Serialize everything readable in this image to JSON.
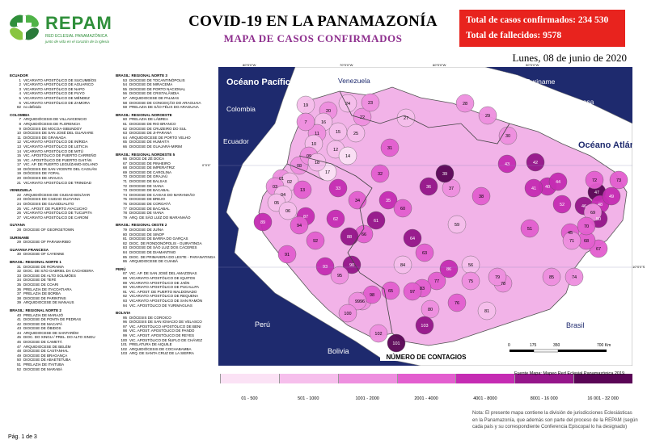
{
  "header": {
    "logo_text": "REPAM",
    "logo_subtitle": "RED ECLESIAL PANAMAZÓNICA",
    "logo_tagline": "junto de vida en el corazón de la Iglesia",
    "title": "COVID-19 EN LA PANAMAZONÍA",
    "subtitle": "MAPA DE CASOS CONFIRMADOS",
    "total_cases": "Total de casos confirmados: 234 530",
    "total_deaths": "Total de fallecidos: 9578",
    "date": "Lunes, 08 de junio de 2020"
  },
  "legend_col1": [
    {
      "header": "ECUADOR",
      "items": [
        [
          "1",
          "VICARIATO APOSTÓLICO DE SUCUMBÍOS"
        ],
        [
          "2",
          "VICARIATO APOSTÓLICO DE AGUARICO"
        ],
        [
          "3",
          "VICARIATO APOSTÓLICO DE NAPO"
        ],
        [
          "4",
          "VICARIATO APOSTÓLICO DE PUYO"
        ],
        [
          "5",
          "VICARIATO APOSTÓLICO DE MÉNDEZ"
        ],
        [
          "6",
          "VICARIATO APOSTÓLICO DE ZAMORA"
        ],
        [
          "82",
          "no definido"
        ]
      ]
    },
    {
      "header": "COLOMBIA",
      "items": [
        [
          "7",
          "ARQUIDIÓCESIS DE VILLAVICENCIO"
        ],
        [
          "8",
          "ARQUIDIÓCESIS DE FLORENCIA"
        ],
        [
          "9",
          "DIÓCESIS DE MOCOA-SIBUNDOY"
        ],
        [
          "10",
          "DIÓCESIS DE SAN JOSÉ DEL GUAVIARE"
        ],
        [
          "11",
          "DIÓCESIS DE GRANADA"
        ],
        [
          "12",
          "VICARIATO APOSTÓLICO DE INÍRIDA"
        ],
        [
          "13",
          "VICARIATO APOSTÓLICO DE LETICIA"
        ],
        [
          "14",
          "VICARIATO APOSTÓLICO DE MITÚ"
        ],
        [
          "15",
          "VIC. APOSTÓLICO DE PUERTO CARREÑO"
        ],
        [
          "16",
          "VIC. APOSTÓLICO DE PUERTO GAITÁN"
        ],
        [
          "17",
          "VIC. AP. DE PUERTO LEGUÍZAMO-SOLANO"
        ],
        [
          "18",
          "DIÓCESIS DE SAN VICENTE DEL CAGUÁN"
        ],
        [
          "19",
          "DIÓCESIS DE YOPAL"
        ],
        [
          "20",
          "DIÓCESIS DE ARAUCA"
        ],
        [
          "21",
          "VICARIATO APOSTÓLICO DE TRINIDAD"
        ]
      ]
    },
    {
      "header": "VENEZUELA",
      "items": [
        [
          "22",
          "ARQUIDIÓCESIS DE CIUDAD BOLÍVAR"
        ],
        [
          "23",
          "DIÓCESIS DE CIUDAD GUAYANA"
        ],
        [
          "24",
          "DIÓCESIS DE GUASDUALITO"
        ],
        [
          "25",
          "VIC. APOST. DE PUERTO AYACUCHO"
        ],
        [
          "26",
          "VICARIATO APOSTÓLICO DE TUCUPITA"
        ],
        [
          "27",
          "VICARIATO APOSTÓLICO DE CARONÍ"
        ]
      ]
    },
    {
      "header": "GUYANA",
      "items": [
        [
          "28",
          "DIOCESE OF GEORGETOWN"
        ]
      ]
    },
    {
      "header": "SURINAME",
      "items": [
        [
          "29",
          "DIOCESE OF PARAMARIBO"
        ]
      ]
    },
    {
      "header": "GUAYANA FRANCESA",
      "items": [
        [
          "30",
          "DIOCESE OF CAYENNE"
        ]
      ]
    },
    {
      "header": "BRASIL: REGIONAL NORTE 1",
      "items": [
        [
          "31",
          "DIOCESE DE RORAIMA"
        ],
        [
          "32",
          "DIOC. DE SÃO GABRIEL DA CACHOEIRA"
        ],
        [
          "33",
          "DIOCESE DE ALTO SOLIMÕES"
        ],
        [
          "34",
          "DIOCESE DE TEFÉ"
        ],
        [
          "35",
          "DIOCESE DE COARI"
        ],
        [
          "36",
          "PRELAZIA DE ITACOATIARA"
        ],
        [
          "37",
          "PRELAZIA DE BORBA"
        ],
        [
          "38",
          "DIOCESE DE PARINTINS"
        ],
        [
          "39",
          "ARQUIDIOCESE DE MANAUS"
        ]
      ]
    },
    {
      "header": "BRASIL: REGIONAL NORTE 2",
      "items": [
        [
          "40",
          "PRELAZIA DE MARAJÓ"
        ],
        [
          "41",
          "DIOCESE DE PONTA DE PEDRAS"
        ],
        [
          "42",
          "DIOCESE DE MACAPÁ"
        ],
        [
          "43",
          "DIOCESE DE ÓBIDOS"
        ],
        [
          "44",
          "ARQUIDIOCESE DE SANTARÉM"
        ],
        [
          "45",
          "DIOC. DO XINGU / PREL. DO ALTO XINGU"
        ],
        [
          "46",
          "DIOCESE DE CAMETÁ"
        ],
        [
          "47",
          "ARQUIDIOCESE DE BELÉM"
        ],
        [
          "48",
          "DIOCESE DE CASTANHAL"
        ],
        [
          "49",
          "DIOCESE DE BRAGANÇA"
        ],
        [
          "50",
          "DIOCESE DE ABAETETUBA"
        ],
        [
          "51",
          "PRELAZIA DE ITAITUBA"
        ],
        [
          "52",
          "DIOCESE DE MARABÁ"
        ]
      ]
    }
  ],
  "legend_col2": [
    {
      "header": "BRASIL: REGIONAL NORTE 3",
      "items": [
        [
          "53",
          "DIOCESE DE TOCANTINÓPOLIS"
        ],
        [
          "54",
          "DIOCESE DE MIRACEMA"
        ],
        [
          "55",
          "DIOCESE DE PORTO NACIONAL"
        ],
        [
          "56",
          "DIOCESE DE CRISTALÂNDIA"
        ],
        [
          "57",
          "ARQUIDIOCESE DE PALMAS"
        ],
        [
          "58",
          "DIOCESE DE CONCEIÇÃO DO ARAGUAIA"
        ],
        [
          "59",
          "PRELAZIA DE SÃO FÉLIX DO ARAGUAIA"
        ]
      ]
    },
    {
      "header": "BRASIL: REGIONAL NOROESTE",
      "items": [
        [
          "60",
          "PRELAZIA DE LÁBREA"
        ],
        [
          "61",
          "DIOCESE DE RIO BRANCO"
        ],
        [
          "62",
          "DIOCESE DE CRUZEIRO DO SUL"
        ],
        [
          "63",
          "DIOCESE DE JI-PARANÁ"
        ],
        [
          "64",
          "ARQUIDIOCESE DE PORTO VELHO"
        ],
        [
          "65",
          "DIOCESE DE HUMAITÁ"
        ],
        [
          "66",
          "DIOCESE DE GUAJARÁ-MIRIM"
        ]
      ]
    },
    {
      "header": "BRASIL: REGIONAL NORDESTE 5",
      "items": [
        [
          "66",
          "DIOCE DE ZÉ DOCA"
        ],
        [
          "67",
          "DIOCESE DE PINHEIRO"
        ],
        [
          "68",
          "DIOCESE DE IMPERATRIZ"
        ],
        [
          "69",
          "DIOCESE DE CAROLINA"
        ],
        [
          "70",
          "DIOCESE DE GRAJAÚ"
        ],
        [
          "71",
          "DIOCESE DE BALSAS"
        ],
        [
          "72",
          "DIOCESE DE VIANA"
        ],
        [
          "73",
          "DIOCESE DE BACABAL"
        ],
        [
          "74",
          "DIOCESE DE CAXIAS DO MARANHÃO"
        ],
        [
          "75",
          "DIOCESE DE BREJO"
        ],
        [
          "76",
          "DIOCESE DE COROATÁ"
        ],
        [
          "77",
          "DIOCESE DE BACABAL"
        ],
        [
          "78",
          "DIOCESE DE VIANA"
        ],
        [
          "79",
          "ARQ. DE SÃO LUÍZ DO MARANHÃO"
        ]
      ]
    },
    {
      "header": "BRASIL: REGIONAL OESTE 2",
      "items": [
        [
          "79",
          "DIOCESE DE JUÍNA"
        ],
        [
          "80",
          "DIOCESE DE SINOP"
        ],
        [
          "81",
          "DIOCESE DE BARRA DO GARÇAS"
        ],
        [
          "82",
          "DIOC. DE RONDONÓPOLIS - GUIRATINGA"
        ],
        [
          "83",
          "DIOCESE DE SÃO LUIZ DOS CÁCERES"
        ],
        [
          "84",
          "DIOCESE DE DIAMANTINO"
        ],
        [
          "85",
          "DIOC. DE PRIMAVERA DO LESTE - PARANATINGA"
        ],
        [
          "86",
          "ARQUIDIOCESE DE CUIABÁ"
        ]
      ]
    },
    {
      "header": "PERÚ",
      "items": [
        [
          "87",
          "VIC. AP. DE SAN JOSÉ DEL AMAZONAS"
        ],
        [
          "88",
          "VICARIATO APOSTÓLICO DE IQUITOS"
        ],
        [
          "89",
          "VICARIATO APOSTÓLICO DE JAÉN"
        ],
        [
          "90",
          "VICARIATO APOSTÓLICO DE PUCALLPA"
        ],
        [
          "91",
          "VIC. APOST. DE PUERTO MALDONADO"
        ],
        [
          "92",
          "VICARIATO APOSTÓLICO DE REQUENA"
        ],
        [
          "93",
          "VICARIATO APOSTÓLICO DE SAN RAMÓN"
        ],
        [
          "94",
          "VIC. APOSTÓLICO DE YURIMAGUAS"
        ]
      ]
    },
    {
      "header": "BOLIVIA",
      "items": [
        [
          "95",
          "DIÓCESIS DE COROICO"
        ],
        [
          "96",
          "DIÓCESIS DE SAN IGNACIO DE VELASCO"
        ],
        [
          "97",
          "VIC. APOSTÓLICO APOSTÓLICO DE BENI"
        ],
        [
          "98",
          "VIC. APOST. APOSTÓLICO DE PANDO"
        ],
        [
          "99",
          "VIC. APOST. APOSTÓLICO DE REYES"
        ],
        [
          "100",
          "VIC. APOSTÓLICO DE ÑUFLO DE CHÁVEZ"
        ],
        [
          "101",
          "PRELATURA DE AIQUILE"
        ],
        [
          "102",
          "ARQUIDIÓCESIS DE COCHABAMBA"
        ],
        [
          "103",
          "ARQ. DE SANTA CRUZ DE LA SIERRA"
        ]
      ]
    }
  ],
  "map": {
    "ocean_labels": {
      "pacific": "Océano Pacífico",
      "atlantic": "Océano Atlántico"
    },
    "country_labels": {
      "venezuela": "Venezuela",
      "colombia": "Colombia",
      "ecuador": "Ecuador",
      "guyana": "Guyana",
      "suriname": "Suriname",
      "guayana_francesa": "Guayana Francesa",
      "peru": "Perú",
      "bolivia": "Bolivia",
      "brasil": "Brasil"
    },
    "region_numbers": [
      {
        "n": "19",
        "c": 2
      },
      {
        "n": "20",
        "c": 3
      },
      {
        "n": "24",
        "c": 2
      },
      {
        "n": "22",
        "c": 3
      },
      {
        "n": "23",
        "c": 3
      },
      {
        "n": "16",
        "c": 2
      },
      {
        "n": "27",
        "c": 2
      },
      {
        "n": "11",
        "c": 3
      },
      {
        "n": "15",
        "c": 2
      },
      {
        "n": "25",
        "c": 2
      },
      {
        "n": "7",
        "c": 3
      },
      {
        "n": "28",
        "c": 3
      },
      {
        "n": "29",
        "c": 3
      },
      {
        "n": "30",
        "c": 3
      },
      {
        "n": "10",
        "c": 2
      },
      {
        "n": "12",
        "c": 2
      },
      {
        "n": "01",
        "c": 3
      },
      {
        "n": "02",
        "c": 2
      },
      {
        "n": "03",
        "c": 3
      },
      {
        "n": "04",
        "c": 2
      },
      {
        "n": "05",
        "c": 2
      },
      {
        "n": "06",
        "c": 2
      },
      {
        "n": "08",
        "c": 3
      },
      {
        "n": "09",
        "c": 3
      },
      {
        "n": "13",
        "c": 4
      },
      {
        "n": "14",
        "c": 1
      },
      {
        "n": "17",
        "c": 1
      },
      {
        "n": "18",
        "c": 2
      },
      {
        "n": "31",
        "c": 4
      },
      {
        "n": "32",
        "c": 4
      },
      {
        "n": "33",
        "c": 5
      },
      {
        "n": "34",
        "c": 4
      },
      {
        "n": "35",
        "c": 5
      },
      {
        "n": "36",
        "c": 6
      },
      {
        "n": "37",
        "c": 3
      },
      {
        "n": "38",
        "c": 4
      },
      {
        "n": "39",
        "c": 7
      },
      {
        "n": "40",
        "c": 5
      },
      {
        "n": "41",
        "c": 5
      },
      {
        "n": "42",
        "c": 6
      },
      {
        "n": "43",
        "c": 5
      },
      {
        "n": "44",
        "c": 5
      },
      {
        "n": "45",
        "c": 4
      },
      {
        "n": "46",
        "c": 6
      },
      {
        "n": "47",
        "c": 7
      },
      {
        "n": "48",
        "c": 5
      },
      {
        "n": "49",
        "c": 5
      },
      {
        "n": "50",
        "c": 6
      },
      {
        "n": "51",
        "c": 4
      },
      {
        "n": "52",
        "c": 5
      },
      {
        "n": "56",
        "c": 2
      },
      {
        "n": "59",
        "c": 2
      },
      {
        "n": "60",
        "c": 4
      },
      {
        "n": "61",
        "c": 6
      },
      {
        "n": "62",
        "c": 5
      },
      {
        "n": "63",
        "c": 4
      },
      {
        "n": "64",
        "c": 6
      },
      {
        "n": "65",
        "c": 4
      },
      {
        "n": "66",
        "c": 4
      },
      {
        "n": "67",
        "c": 4
      },
      {
        "n": "68",
        "c": 4
      },
      {
        "n": "69",
        "c": 3
      },
      {
        "n": "70",
        "c": 4
      },
      {
        "n": "71",
        "c": 3
      },
      {
        "n": "72",
        "c": 4
      },
      {
        "n": "73",
        "c": 4
      },
      {
        "n": "74",
        "c": 3
      },
      {
        "n": "75",
        "c": 3
      },
      {
        "n": "76",
        "c": 4
      },
      {
        "n": "77",
        "c": 4
      },
      {
        "n": "78",
        "c": 3
      },
      {
        "n": "79",
        "c": 3
      },
      {
        "n": "80",
        "c": 3
      },
      {
        "n": "81",
        "c": 2
      },
      {
        "n": "83",
        "c": 4
      },
      {
        "n": "84",
        "c": 2
      },
      {
        "n": "85",
        "c": 3
      },
      {
        "n": "86",
        "c": 5
      },
      {
        "n": "87",
        "c": 5
      },
      {
        "n": "88",
        "c": 6
      },
      {
        "n": "89",
        "c": 5
      },
      {
        "n": "90",
        "c": 6
      },
      {
        "n": "91",
        "c": 4
      },
      {
        "n": "92",
        "c": 4
      },
      {
        "n": "93",
        "c": 5
      },
      {
        "n": "94",
        "c": 4
      },
      {
        "n": "95",
        "c": 3
      },
      {
        "n": "96",
        "c": 3
      },
      {
        "n": "97",
        "c": 4
      },
      {
        "n": "98",
        "c": 4
      },
      {
        "n": "99",
        "c": 3
      },
      {
        "n": "100",
        "c": 3
      },
      {
        "n": "101",
        "c": 7
      },
      {
        "n": "102",
        "c": 3
      },
      {
        "n": "103",
        "c": 6
      }
    ],
    "scale_bar": {
      "labels": [
        "0",
        "175",
        "350",
        "700 Km"
      ]
    },
    "lat_ticks": [
      "0°0'0\"",
      "10°0'0\"S"
    ],
    "lon_ticks": [
      "80°0'0\"W",
      "70°0'0\"W",
      "60°0'0\"W",
      "50°0'0\"W"
    ]
  },
  "color_legend": {
    "title": "NÚMERO DE CONTAGIOS",
    "bins": [
      {
        "label": "01 - 500",
        "color": "#fbe2f5"
      },
      {
        "label": "501 - 1000",
        "color": "#f6bfec"
      },
      {
        "label": "1001 - 2000",
        "color": "#ee8fdf"
      },
      {
        "label": "2001 - 4000",
        "color": "#e35ecf"
      },
      {
        "label": "4001 - 8000",
        "color": "#c52cb3"
      },
      {
        "label": "8001 - 16 000",
        "color": "#95168a"
      },
      {
        "label": "16 001 - 32 000",
        "color": "#5a0556"
      }
    ]
  },
  "colors": {
    "ocean": "#1e2a6e",
    "outside_land": "#ffffff",
    "border": "#555555",
    "header_red": "#e8231e"
  },
  "source": "Fuente Mapa: Mapeo Red Eclesial Panamazónica 2019.",
  "note": "Nota: El presente mapa contiene la división de jurisdicciones Eclesiásticas en la Panamazonía, que además son parte del proceso de la REPAM (según cada país y su correspondiente Conferencia Episcopal lo ha designado)",
  "page_number": "Pág. 1 de 3"
}
